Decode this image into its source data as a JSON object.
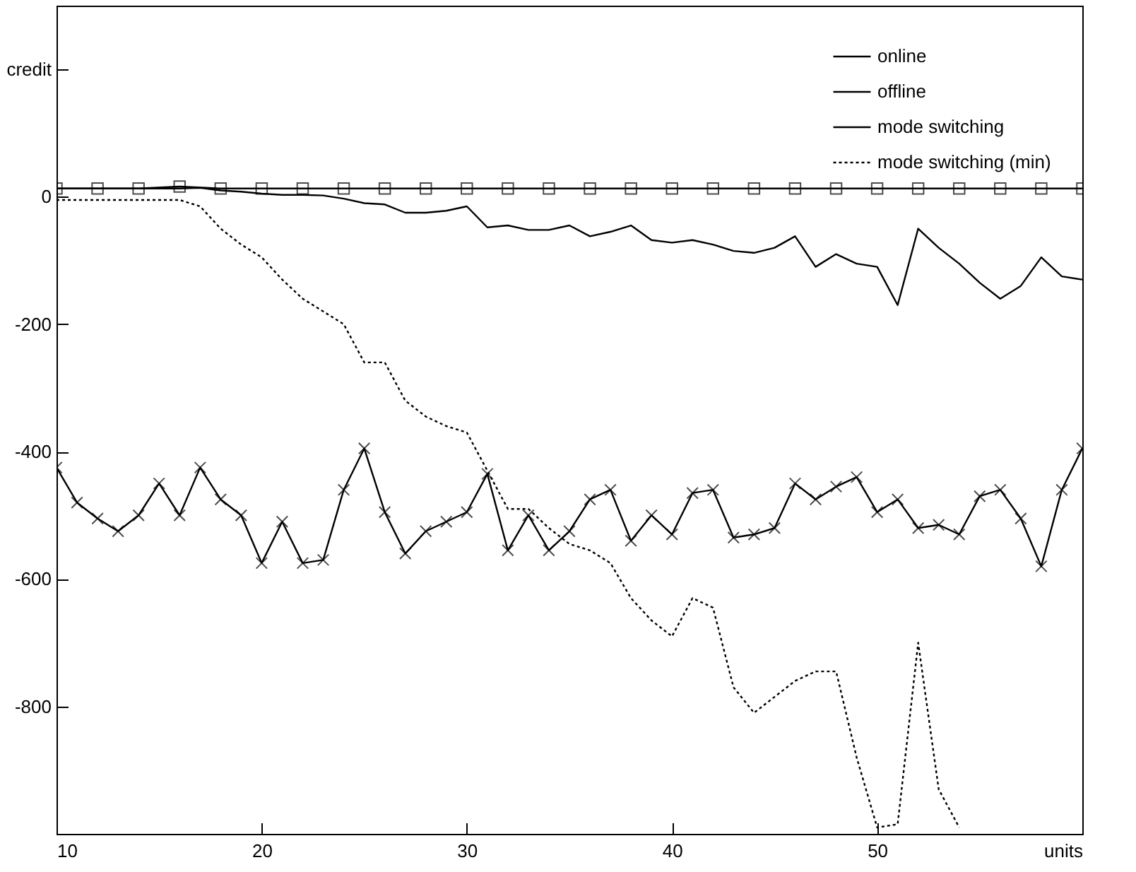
{
  "chart_data": {
    "type": "line",
    "x": [
      10,
      11,
      12,
      13,
      14,
      15,
      16,
      17,
      18,
      19,
      20,
      21,
      22,
      23,
      24,
      25,
      26,
      27,
      28,
      29,
      30,
      31,
      32,
      33,
      34,
      35,
      36,
      37,
      38,
      39,
      40,
      41,
      42,
      43,
      44,
      45,
      46,
      47,
      48,
      49,
      50,
      51,
      52,
      53,
      54,
      55,
      56,
      57,
      58,
      59,
      60
    ],
    "series": [
      {
        "name": "online",
        "color": "#000000",
        "marker": "square",
        "line_style": "solid",
        "x": [
          10,
          12,
          14,
          16,
          18,
          20,
          22,
          24,
          26,
          28,
          30,
          32,
          34,
          36,
          38,
          40,
          42,
          44,
          46,
          48,
          50,
          52,
          54,
          56,
          58,
          60
        ],
        "values": [
          13,
          13,
          13,
          16,
          13,
          13,
          13,
          13,
          13,
          13,
          13,
          13,
          13,
          13,
          13,
          13,
          13,
          13,
          13,
          13,
          13,
          13,
          13,
          13,
          13,
          13
        ]
      },
      {
        "name": "offline",
        "color": "#000000",
        "marker": "cross",
        "line_style": "solid",
        "values": [
          -425,
          -480,
          -505,
          -525,
          -500,
          -450,
          -500,
          -425,
          -475,
          -500,
          -575,
          -510,
          -575,
          -570,
          -460,
          -395,
          -495,
          -560,
          -525,
          -510,
          -495,
          -435,
          -555,
          -500,
          -555,
          -525,
          -475,
          -460,
          -540,
          -500,
          -530,
          -465,
          -460,
          -535,
          -530,
          -520,
          -450,
          -475,
          -455,
          -440,
          -495,
          -475,
          -520,
          -515,
          -530,
          -470,
          -460,
          -505,
          -580,
          -460,
          -395
        ]
      },
      {
        "name": "mode switching",
        "color": "#000000",
        "marker": "none",
        "line_style": "solid",
        "values": [
          13,
          13,
          13,
          13,
          13,
          13,
          13,
          14,
          10,
          8,
          5,
          3,
          3,
          2,
          -3,
          -10,
          -12,
          -25,
          -25,
          -22,
          -15,
          -48,
          -45,
          -52,
          -52,
          -45,
          -62,
          -55,
          -45,
          -68,
          -72,
          -68,
          -75,
          -85,
          -88,
          -80,
          -62,
          -110,
          -90,
          -105,
          -110,
          -170,
          -50,
          -80,
          -105,
          -135,
          -160,
          -140,
          -95,
          -125,
          -130
        ]
      },
      {
        "name": "mode switching (min)",
        "color": "#000000",
        "marker": "none",
        "line_style": "dotted",
        "x": [
          10,
          11,
          12,
          13,
          14,
          15,
          16,
          17,
          18,
          19,
          20,
          21,
          22,
          23,
          24,
          25,
          26,
          27,
          28,
          29,
          30,
          31,
          32,
          33,
          34,
          35,
          36,
          37,
          38,
          39,
          40,
          41,
          42,
          43,
          44,
          45,
          46,
          47,
          48,
          49,
          50,
          51,
          52,
          53,
          54
        ],
        "values": [
          -5,
          -5,
          -5,
          -5,
          -5,
          -5,
          -5,
          -15,
          -50,
          -75,
          -95,
          -130,
          -160,
          -180,
          -200,
          -260,
          -260,
          -320,
          -345,
          -360,
          -370,
          -430,
          -490,
          -490,
          -520,
          -545,
          -555,
          -575,
          -630,
          -665,
          -690,
          -630,
          -645,
          -770,
          -810,
          -785,
          -760,
          -745,
          -745,
          -880,
          -990,
          -985,
          -700,
          -930,
          -990
        ]
      }
    ],
    "xlim": [
      10,
      60
    ],
    "xticks": [
      10,
      20,
      30,
      40,
      50,
      {
        "value": 60,
        "label": "units"
      }
    ],
    "ylim": [
      -1000,
      300
    ],
    "yticks": [
      -800,
      -600,
      -400,
      -200,
      0,
      {
        "value": 200,
        "label": "credit"
      }
    ],
    "grid": false,
    "legend": "top right"
  }
}
